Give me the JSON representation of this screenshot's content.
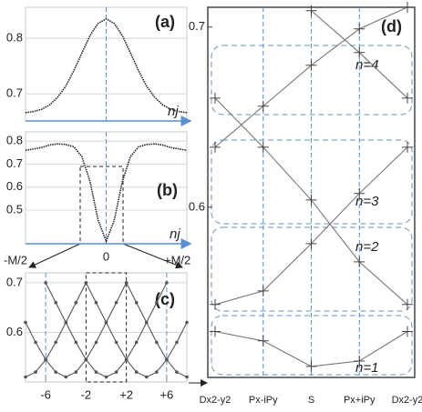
{
  "chart_data": [
    {
      "type": "line",
      "title": "(a)",
      "annotations": [
        "nj"
      ],
      "x": [
        -10,
        -9,
        -8,
        -7,
        -6,
        -5,
        -4,
        -3,
        -2,
        -1,
        0,
        1,
        2,
        3,
        4,
        5,
        6,
        7,
        8,
        9,
        10
      ],
      "series": [
        {
          "color": "#222222",
          "values": [
            0.666,
            0.668,
            0.672,
            0.68,
            0.694,
            0.714,
            0.742,
            0.774,
            0.805,
            0.827,
            0.835,
            0.827,
            0.805,
            0.774,
            0.742,
            0.714,
            0.694,
            0.68,
            0.672,
            0.668,
            0.666
          ]
        }
      ],
      "xlim": [
        -10,
        10
      ],
      "ylim": [
        0.651,
        0.856
      ],
      "yticks": [
        0.7,
        0.8
      ],
      "grid": true
    },
    {
      "type": "line",
      "title": "(b)",
      "annotations": [
        "nj",
        "-M/2",
        "+M/2"
      ],
      "x": [
        -10,
        -9,
        -8,
        -7,
        -6,
        -5,
        -4,
        -3,
        -2,
        -1,
        0,
        1,
        2,
        3,
        4,
        5,
        6,
        7,
        8,
        9,
        10
      ],
      "series": [
        {
          "color": "#222222",
          "values": [
            0.76,
            0.766,
            0.772,
            0.783,
            0.788,
            0.785,
            0.775,
            0.732,
            0.624,
            0.456,
            0.365,
            0.456,
            0.624,
            0.732,
            0.775,
            0.785,
            0.788,
            0.783,
            0.772,
            0.766,
            0.76
          ]
        }
      ],
      "xlim": [
        -10,
        10
      ],
      "ylim": [
        0.354,
        0.84
      ],
      "yticks": [
        0.5,
        0.6,
        0.7,
        0.8
      ],
      "xticks": [
        0
      ],
      "grid": true
    },
    {
      "type": "scatter-line",
      "title": "(c)",
      "series": [
        {
          "color": "#555555",
          "x": [
            -8,
            -7,
            -6,
            -5,
            -4,
            -3,
            -2
          ],
          "values": [
            0.51,
            0.52,
            0.545,
            0.58,
            0.62,
            0.66,
            0.7
          ]
        },
        {
          "color": "#555555",
          "x": [
            -8,
            -7,
            -6,
            -5,
            -4,
            -3,
            -2,
            -1,
            0,
            1,
            2
          ],
          "values": [
            0.62,
            0.58,
            0.545,
            0.52,
            0.51,
            0.52,
            0.545,
            0.58,
            0.62,
            0.66,
            0.7
          ]
        },
        {
          "color": "#555555",
          "x": [
            -6,
            -5,
            -4,
            -3,
            -2,
            -1,
            0,
            1,
            2,
            3,
            4,
            5,
            6
          ],
          "values": [
            0.7,
            0.66,
            0.62,
            0.58,
            0.545,
            0.52,
            0.51,
            0.52,
            0.545,
            0.58,
            0.62,
            0.66,
            0.7
          ]
        },
        {
          "color": "#555555",
          "x": [
            -2,
            -1,
            0,
            1,
            2,
            3,
            4,
            5,
            6,
            7,
            8
          ],
          "values": [
            0.7,
            0.66,
            0.62,
            0.58,
            0.545,
            0.52,
            0.51,
            0.52,
            0.545,
            0.58,
            0.62
          ]
        },
        {
          "color": "#555555",
          "x": [
            2,
            3,
            4,
            5,
            6,
            7,
            8
          ],
          "values": [
            0.7,
            0.66,
            0.62,
            0.58,
            0.545,
            0.52,
            0.51
          ]
        }
      ],
      "xlim": [
        -8,
        8
      ],
      "ylim": [
        0.5,
        0.72
      ],
      "yticks": [
        0.6,
        0.7
      ],
      "xticks": [
        -6,
        -2,
        {
          "value": 2,
          "label": "+2"
        },
        {
          "value": 6,
          "label": "+6"
        }
      ],
      "vlines": [
        -6,
        6
      ],
      "highlight": [
        -2,
        2
      ],
      "grid": true
    },
    {
      "type": "line",
      "title": "(d)",
      "annotations": [
        "n=4",
        "n=3",
        "n=2",
        "n=1"
      ],
      "categories": [
        "Dx2-y2",
        "Px-iPy",
        "S",
        "Px+iPy",
        "Dx2-y2"
      ],
      "series": [
        {
          "color": "#777777",
          "values": [
            0.531,
            0.5258,
            0.5116,
            0.5146,
            0.531
          ]
        },
        {
          "color": "#777777",
          "values": [
            0.546,
            0.5535,
            0.5798,
            0.6076,
            0.6333
          ]
        },
        {
          "color": "#777777",
          "values": [
            0.6606,
            0.6333,
            0.604,
            0.5697,
            0.546
          ]
        },
        {
          "color": "#777777",
          "values": [
            0.6333,
            0.6561,
            0.6788,
            0.699,
            0.711
          ]
        },
        {
          "color": "#777777",
          "values": [
            null,
            null,
            0.7091,
            0.6859,
            0.6606
          ]
        }
      ],
      "ylim": [
        0.5055,
        0.711
      ],
      "yticks": [
        0.6,
        0.7
      ]
    }
  ]
}
